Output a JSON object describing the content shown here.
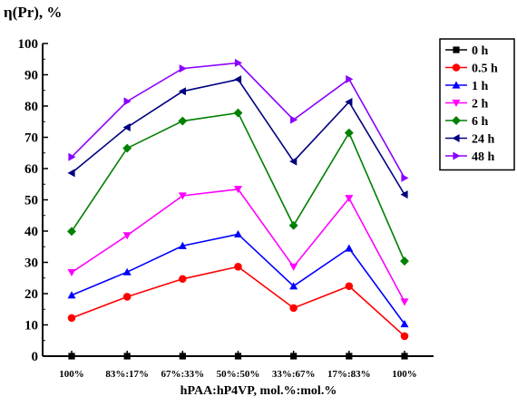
{
  "chart_data": {
    "type": "line",
    "ylabel": "η(Pr), %",
    "xlabel": "hPAA:hP4VP, mol.%:mol.%",
    "categories": [
      "100%",
      "83%:17%",
      "67%:33%",
      "50%:50%",
      "33%:67%",
      "17%:83%",
      "100%"
    ],
    "ylim": [
      0,
      100
    ],
    "yticks": [
      0,
      10,
      20,
      30,
      40,
      50,
      60,
      70,
      80,
      90,
      100
    ],
    "grid": false,
    "legend_position": "top-right",
    "series": [
      {
        "name": "0 h",
        "color": "#000000",
        "marker": "square",
        "values": [
          0,
          0,
          0,
          0,
          0,
          0,
          0
        ]
      },
      {
        "name": "0.5 h",
        "color": "#ff0000",
        "marker": "circle",
        "values": [
          12.2,
          19,
          24.7,
          28.6,
          15.4,
          22.4,
          6.4
        ]
      },
      {
        "name": "1 h",
        "color": "#0000ff",
        "marker": "triangle-up",
        "values": [
          19.5,
          26.9,
          35.3,
          39,
          22.4,
          34.5,
          10.3
        ]
      },
      {
        "name": "2 h",
        "color": "#ff00ff",
        "marker": "triangle-down",
        "values": [
          26.8,
          38.6,
          51.3,
          53.4,
          28.6,
          50.5,
          17.4
        ]
      },
      {
        "name": "6 h",
        "color": "#008000",
        "marker": "diamond",
        "values": [
          39.9,
          66.5,
          75.2,
          77.8,
          41.8,
          71.4,
          30.4
        ]
      },
      {
        "name": "24 h",
        "color": "#000080",
        "marker": "triangle-left",
        "values": [
          58.6,
          73.2,
          84.7,
          88.5,
          62.3,
          81.3,
          51.7
        ]
      },
      {
        "name": "48 h",
        "color": "#8b00ff",
        "marker": "triangle-right",
        "values": [
          63.7,
          81.5,
          92,
          93.8,
          75.6,
          88.6,
          57
        ]
      }
    ]
  }
}
